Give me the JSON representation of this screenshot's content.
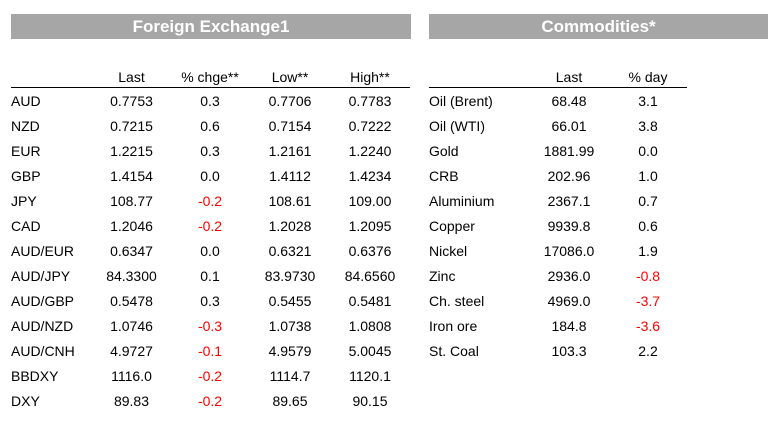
{
  "fx": {
    "title": "Foreign Exchange1",
    "headers": [
      "",
      "Last",
      "% chge**",
      "Low**",
      "High**"
    ],
    "rows": [
      {
        "name": "AUD",
        "last": "0.7753",
        "chg": "0.3",
        "low": "0.7706",
        "high": "0.7783",
        "neg": false
      },
      {
        "name": "NZD",
        "last": "0.7215",
        "chg": "0.6",
        "low": "0.7154",
        "high": "0.7222",
        "neg": false
      },
      {
        "name": "EUR",
        "last": "1.2215",
        "chg": "0.3",
        "low": "1.2161",
        "high": "1.2240",
        "neg": false
      },
      {
        "name": "GBP",
        "last": "1.4154",
        "chg": "0.0",
        "low": "1.4112",
        "high": "1.4234",
        "neg": false
      },
      {
        "name": "JPY",
        "last": "108.77",
        "chg": "-0.2",
        "low": "108.61",
        "high": "109.00",
        "neg": true
      },
      {
        "name": "CAD",
        "last": "1.2046",
        "chg": "-0.2",
        "low": "1.2028",
        "high": "1.2095",
        "neg": true
      },
      {
        "name": "AUD/EUR",
        "last": "0.6347",
        "chg": "0.0",
        "low": "0.6321",
        "high": "0.6376",
        "neg": false
      },
      {
        "name": "AUD/JPY",
        "last": "84.3300",
        "chg": "0.1",
        "low": "83.9730",
        "high": "84.6560",
        "neg": false
      },
      {
        "name": "AUD/GBP",
        "last": "0.5478",
        "chg": "0.3",
        "low": "0.5455",
        "high": "0.5481",
        "neg": false
      },
      {
        "name": "AUD/NZD",
        "last": "1.0746",
        "chg": "-0.3",
        "low": "1.0738",
        "high": "1.0808",
        "neg": true
      },
      {
        "name": "AUD/CNH",
        "last": "4.9727",
        "chg": "-0.1",
        "low": "4.9579",
        "high": "5.0045",
        "neg": true
      },
      {
        "name": "BBDXY",
        "last": "1116.0",
        "chg": "-0.2",
        "low": "1114.7",
        "high": "1120.1",
        "neg": true
      },
      {
        "name": "DXY",
        "last": "89.83",
        "chg": "-0.2",
        "low": "89.65",
        "high": "90.15",
        "neg": true
      }
    ]
  },
  "commodities": {
    "title": "Commodities*",
    "headers": [
      "",
      "Last",
      "% day"
    ],
    "rows": [
      {
        "name": "Oil (Brent)",
        "last": "68.48",
        "chg": "3.1",
        "neg": false
      },
      {
        "name": "Oil (WTI)",
        "last": "66.01",
        "chg": "3.8",
        "neg": false
      },
      {
        "name": "Gold",
        "last": "1881.99",
        "chg": "0.0",
        "neg": false
      },
      {
        "name": "CRB",
        "last": "202.96",
        "chg": "1.0",
        "neg": false
      },
      {
        "name": "Aluminium",
        "last": "2367.1",
        "chg": "0.7",
        "neg": false
      },
      {
        "name": "Copper",
        "last": "9939.8",
        "chg": "0.6",
        "neg": false
      },
      {
        "name": "Nickel",
        "last": "17086.0",
        "chg": "1.9",
        "neg": false
      },
      {
        "name": "Zinc",
        "last": "2936.0",
        "chg": "-0.8",
        "neg": true
      },
      {
        "name": "Ch. steel",
        "last": "4969.0",
        "chg": "-3.7",
        "neg": true
      },
      {
        "name": "Iron ore",
        "last": "184.8",
        "chg": "-3.6",
        "neg": true
      },
      {
        "name": "St. Coal",
        "last": "103.3",
        "chg": "2.2",
        "neg": false
      }
    ]
  },
  "colors": {
    "banner_bg": "#a6a6a6",
    "negative": "#ff0000"
  }
}
